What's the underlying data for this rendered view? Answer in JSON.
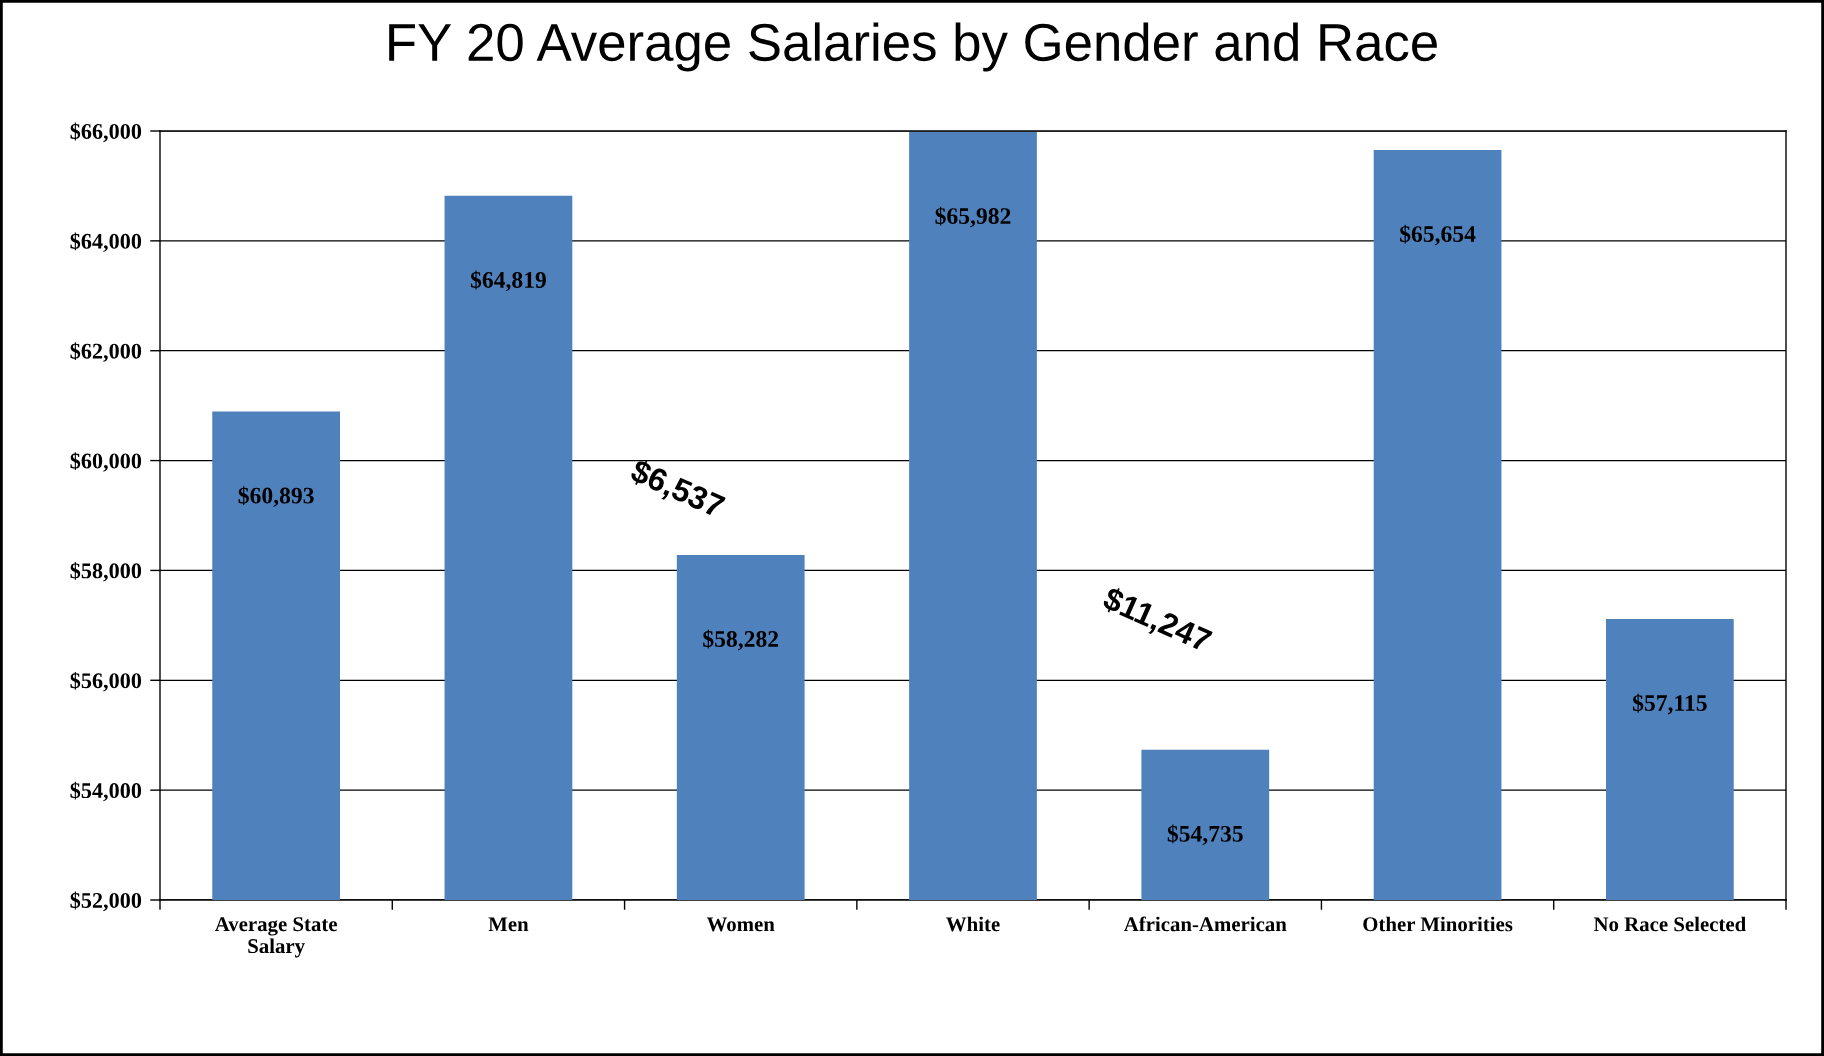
{
  "chart_data": {
    "type": "bar",
    "title": "FY 20 Average Salaries by Gender and Race",
    "categories": [
      "Average State\nSalary",
      "Men",
      "Women",
      "White",
      "African-American",
      "Other Minorities",
      "No Race Selected"
    ],
    "values": [
      60893,
      64819,
      58282,
      65982,
      54735,
      65654,
      57115
    ],
    "value_labels": [
      "$60,893",
      "$64,819",
      "$58,282",
      "$65,982",
      "$54,735",
      "$65,654",
      "$57,115"
    ],
    "color": "#4f81bd",
    "ylim": [
      52000,
      66000
    ],
    "yticks": [
      {
        "value": 52000,
        "label": "$52,000"
      },
      {
        "value": 54000,
        "label": "$54,000"
      },
      {
        "value": 56000,
        "label": "$56,000"
      },
      {
        "value": 58000,
        "label": "$58,000"
      },
      {
        "value": 60000,
        "label": "$60,000"
      },
      {
        "value": 62000,
        "label": "$62,000"
      },
      {
        "value": 64000,
        "label": "$64,000"
      },
      {
        "value": 66000,
        "label": "$66,000"
      }
    ],
    "grid": "y",
    "annotations": [
      "$6,537",
      "$11,247"
    ]
  }
}
